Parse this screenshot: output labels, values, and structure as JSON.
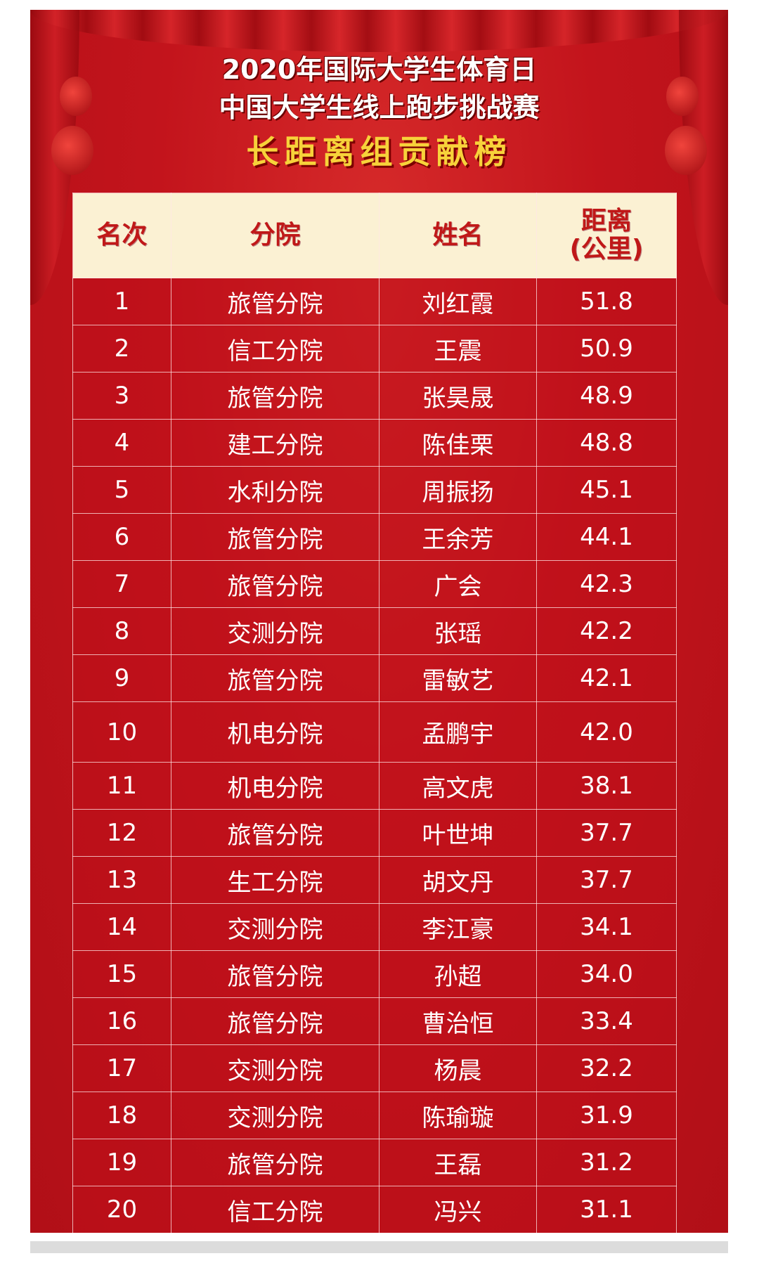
{
  "header": {
    "title_line1": "2020年国际大学生体育日",
    "title_line2": "中国大学生线上跑步挑战赛",
    "title_line3": "长距离组贡献榜"
  },
  "colors": {
    "background": "#c3141c",
    "header_row": "#fbf1d3",
    "header_text": "#c01818",
    "subtitle": "#f7d23a"
  },
  "table": {
    "columns": [
      "名次",
      "分院",
      "姓名",
      "距离",
      "(公里)"
    ],
    "rows": [
      {
        "rank": "1",
        "college": "旅管分院",
        "name": "刘红霞",
        "distance": "51.8"
      },
      {
        "rank": "2",
        "college": "信工分院",
        "name": "王震",
        "distance": "50.9"
      },
      {
        "rank": "3",
        "college": "旅管分院",
        "name": "张昊晟",
        "distance": "48.9"
      },
      {
        "rank": "4",
        "college": "建工分院",
        "name": "陈佳栗",
        "distance": "48.8"
      },
      {
        "rank": "5",
        "college": "水利分院",
        "name": "周振扬",
        "distance": "45.1"
      },
      {
        "rank": "6",
        "college": "旅管分院",
        "name": "王余芳",
        "distance": "44.1"
      },
      {
        "rank": "7",
        "college": "旅管分院",
        "name": "广会",
        "distance": "42.3"
      },
      {
        "rank": "8",
        "college": "交测分院",
        "name": "张瑶",
        "distance": "42.2"
      },
      {
        "rank": "9",
        "college": "旅管分院",
        "name": "雷敏艺",
        "distance": "42.1"
      },
      {
        "rank": "10",
        "college": "机电分院",
        "name": "孟鹏宇",
        "distance": "42.0"
      },
      {
        "rank": "11",
        "college": "机电分院",
        "name": "高文虎",
        "distance": "38.1"
      },
      {
        "rank": "12",
        "college": "旅管分院",
        "name": "叶世坤",
        "distance": "37.7"
      },
      {
        "rank": "13",
        "college": "生工分院",
        "name": "胡文丹",
        "distance": "37.7"
      },
      {
        "rank": "14",
        "college": "交测分院",
        "name": "李江豪",
        "distance": "34.1"
      },
      {
        "rank": "15",
        "college": "旅管分院",
        "name": "孙超",
        "distance": "34.0"
      },
      {
        "rank": "16",
        "college": "旅管分院",
        "name": "曹治恒",
        "distance": "33.4"
      },
      {
        "rank": "17",
        "college": "交测分院",
        "name": "杨晨",
        "distance": "32.2"
      },
      {
        "rank": "18",
        "college": "交测分院",
        "name": "陈瑜璇",
        "distance": "31.9"
      },
      {
        "rank": "19",
        "college": "旅管分院",
        "name": "王磊",
        "distance": "31.2"
      },
      {
        "rank": "20",
        "college": "信工分院",
        "name": "冯兴",
        "distance": "31.1"
      }
    ]
  }
}
